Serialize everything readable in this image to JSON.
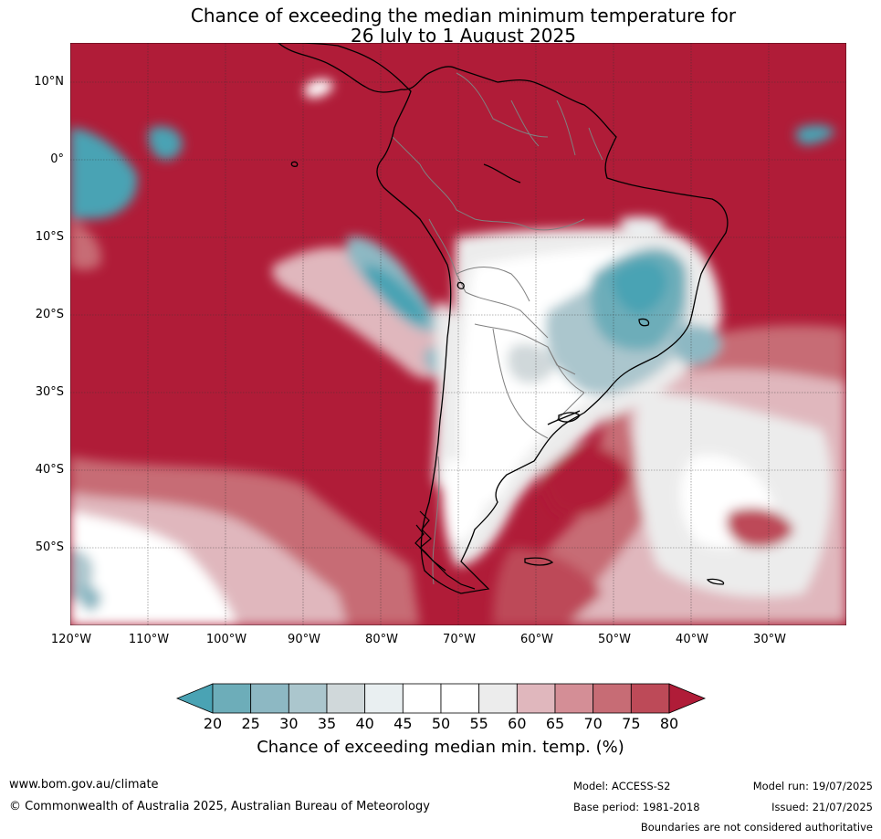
{
  "title": {
    "line1": "Chance of exceeding the median minimum temperature for",
    "line2": "26 July to 1 August 2025"
  },
  "map": {
    "lat_labels": [
      "10°N",
      "0°",
      "10°S",
      "20°S",
      "30°S",
      "40°S",
      "50°S"
    ],
    "lon_labels": [
      "120°W",
      "110°W",
      "100°W",
      "90°W",
      "80°W",
      "70°W",
      "60°W",
      "50°W",
      "40°W",
      "30°W"
    ],
    "colors": {
      "high": "#b01c38",
      "low": "#4aa3b4",
      "coast": "#000000",
      "border": "#808080",
      "grid": "#333333"
    }
  },
  "colorbar": {
    "ticks": [
      "20",
      "25",
      "30",
      "35",
      "40",
      "45",
      "50",
      "55",
      "60",
      "65",
      "70",
      "75",
      "80"
    ],
    "colors": [
      "#4aa3b4",
      "#6dadb9",
      "#8db8c3",
      "#abc6cd",
      "#d0d8da",
      "#e9eff1",
      "#ffffff",
      "#ffffff",
      "#ececec",
      "#e0b7bd",
      "#d48e96",
      "#c76c75",
      "#bd4a58",
      "#b01c38"
    ],
    "label": "Chance of exceeding median min. temp. (%)"
  },
  "footer": {
    "website": "www.bom.gov.au/climate",
    "copyright": "© Commonwealth of Australia 2025, Australian Bureau of Meteorology",
    "model": "Model: ACCESS-S2",
    "base_period": "Base period: 1981-2018",
    "model_run": "Model run: 19/07/2025",
    "issued": "Issued: 21/07/2025",
    "disclaimer": "Boundaries are not considered authoritative"
  }
}
